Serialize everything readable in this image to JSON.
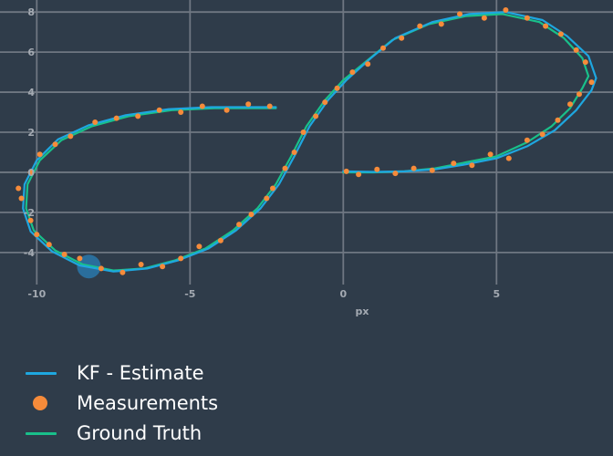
{
  "chart_data": {
    "type": "scatter",
    "title": "",
    "xlabel": "px",
    "ylabel": "",
    "xlim": [
      -11.2,
      8.8
    ],
    "ylim": [
      -5.6,
      8.6
    ],
    "x_ticks": [
      -10,
      -5,
      0,
      5
    ],
    "y_ticks": [
      -4,
      -2,
      0,
      2,
      4,
      6,
      8
    ],
    "grid": true,
    "legend_position": "bottom-left",
    "colors": {
      "background": "#2f3c4a",
      "grid": "#6f7782",
      "estimate": "#1ea7e0",
      "measurements": "#f68b3a",
      "ground_truth": "#19c08a",
      "highlight": "#2a7fb8"
    },
    "highlight_point": {
      "x": -8.3,
      "y": -4.7
    },
    "legend": [
      {
        "label": "KF - Estimate",
        "symbol": "line",
        "color": "#1ea7e0"
      },
      {
        "label": "Measurements",
        "symbol": "dot",
        "color": "#f68b3a"
      },
      {
        "label": "Ground Truth",
        "symbol": "line",
        "color": "#19c08a"
      }
    ],
    "series": [
      {
        "name": "Ground Truth",
        "kind": "line",
        "points": [
          [
            0,
            0
          ],
          [
            1,
            0
          ],
          [
            2,
            0.05
          ],
          [
            3,
            0.2
          ],
          [
            4,
            0.5
          ],
          [
            5,
            0.8
          ],
          [
            6,
            1.5
          ],
          [
            6.8,
            2.3
          ],
          [
            7.4,
            3.2
          ],
          [
            7.8,
            4.2
          ],
          [
            8,
            4.8
          ],
          [
            7.8,
            5.7
          ],
          [
            7.2,
            6.7
          ],
          [
            6.4,
            7.5
          ],
          [
            5.2,
            7.9
          ],
          [
            4,
            7.8
          ],
          [
            2.8,
            7.4
          ],
          [
            1.6,
            6.6
          ],
          [
            0.8,
            5.6
          ],
          [
            0,
            4.6
          ],
          [
            -0.6,
            3.6
          ],
          [
            -1.2,
            2.3
          ],
          [
            -1.7,
            0.8
          ],
          [
            -2.2,
            -0.6
          ],
          [
            -2.8,
            -1.8
          ],
          [
            -3.6,
            -2.9
          ],
          [
            -4.5,
            -3.8
          ],
          [
            -5.5,
            -4.4
          ],
          [
            -6.5,
            -4.8
          ],
          [
            -7.5,
            -4.9
          ],
          [
            -8.5,
            -4.6
          ],
          [
            -9.4,
            -3.9
          ],
          [
            -10.1,
            -2.9
          ],
          [
            -10.35,
            -1.8
          ],
          [
            -10.3,
            -0.6
          ],
          [
            -9.9,
            0.6
          ],
          [
            -9.2,
            1.6
          ],
          [
            -8.2,
            2.3
          ],
          [
            -7,
            2.8
          ],
          [
            -5.6,
            3.1
          ],
          [
            -4.2,
            3.2
          ],
          [
            -2.2,
            3.2
          ]
        ]
      },
      {
        "name": "KF - Estimate",
        "kind": "line",
        "points": [
          [
            0,
            0.05
          ],
          [
            1,
            0.02
          ],
          [
            2,
            0.05
          ],
          [
            3,
            0.15
          ],
          [
            4,
            0.4
          ],
          [
            5,
            0.7
          ],
          [
            6,
            1.3
          ],
          [
            6.9,
            2.1
          ],
          [
            7.6,
            3.1
          ],
          [
            8.1,
            4.1
          ],
          [
            8.25,
            4.7
          ],
          [
            8,
            5.8
          ],
          [
            7.3,
            6.8
          ],
          [
            6.5,
            7.6
          ],
          [
            5.3,
            8
          ],
          [
            4.1,
            7.9
          ],
          [
            2.9,
            7.5
          ],
          [
            1.7,
            6.7
          ],
          [
            0.9,
            5.7
          ],
          [
            0.1,
            4.6
          ],
          [
            -0.5,
            3.6
          ],
          [
            -1.1,
            2.3
          ],
          [
            -1.6,
            0.8
          ],
          [
            -2.1,
            -0.6
          ],
          [
            -2.7,
            -1.8
          ],
          [
            -3.5,
            -2.9
          ],
          [
            -4.4,
            -3.8
          ],
          [
            -5.4,
            -4.4
          ],
          [
            -6.4,
            -4.8
          ],
          [
            -7.5,
            -4.95
          ],
          [
            -8.6,
            -4.65
          ],
          [
            -9.5,
            -3.95
          ],
          [
            -10.2,
            -2.95
          ],
          [
            -10.45,
            -1.8
          ],
          [
            -10.4,
            -0.6
          ],
          [
            -10,
            0.6
          ],
          [
            -9.3,
            1.65
          ],
          [
            -8.3,
            2.35
          ],
          [
            -7.1,
            2.85
          ],
          [
            -5.7,
            3.15
          ],
          [
            -4.3,
            3.25
          ],
          [
            -2.2,
            3.25
          ]
        ]
      },
      {
        "name": "Measurements",
        "kind": "points",
        "points": [
          [
            0.1,
            0.05
          ],
          [
            0.5,
            -0.1
          ],
          [
            1.1,
            0.15
          ],
          [
            1.7,
            -0.05
          ],
          [
            2.3,
            0.2
          ],
          [
            2.9,
            0.1
          ],
          [
            3.6,
            0.45
          ],
          [
            4.2,
            0.35
          ],
          [
            4.8,
            0.9
          ],
          [
            5.4,
            0.7
          ],
          [
            6,
            1.6
          ],
          [
            6.5,
            1.9
          ],
          [
            7,
            2.6
          ],
          [
            7.4,
            3.4
          ],
          [
            7.7,
            3.9
          ],
          [
            8.1,
            4.5
          ],
          [
            7.9,
            5.5
          ],
          [
            7.6,
            6.1
          ],
          [
            7.1,
            6.9
          ],
          [
            6.6,
            7.3
          ],
          [
            6,
            7.7
          ],
          [
            5.3,
            8.1
          ],
          [
            4.6,
            7.7
          ],
          [
            3.8,
            7.9
          ],
          [
            3.2,
            7.4
          ],
          [
            2.5,
            7.3
          ],
          [
            1.9,
            6.7
          ],
          [
            1.3,
            6.2
          ],
          [
            0.8,
            5.4
          ],
          [
            0.3,
            5
          ],
          [
            -0.2,
            4.2
          ],
          [
            -0.6,
            3.5
          ],
          [
            -0.9,
            2.8
          ],
          [
            -1.3,
            2
          ],
          [
            -1.6,
            1
          ],
          [
            -1.9,
            0.2
          ],
          [
            -2.3,
            -0.8
          ],
          [
            -2.5,
            -1.3
          ],
          [
            -3,
            -2.1
          ],
          [
            -3.4,
            -2.6
          ],
          [
            -4,
            -3.4
          ],
          [
            -4.7,
            -3.7
          ],
          [
            -5.3,
            -4.3
          ],
          [
            -5.9,
            -4.7
          ],
          [
            -6.6,
            -4.6
          ],
          [
            -7.2,
            -5
          ],
          [
            -7.9,
            -4.8
          ],
          [
            -8.6,
            -4.3
          ],
          [
            -9.1,
            -4.1
          ],
          [
            -9.6,
            -3.6
          ],
          [
            -10,
            -3.1
          ],
          [
            -10.2,
            -2.4
          ],
          [
            -10.5,
            -1.3
          ],
          [
            -10.6,
            -0.8
          ],
          [
            -10.2,
            0
          ],
          [
            -9.9,
            0.9
          ],
          [
            -9.4,
            1.4
          ],
          [
            -8.9,
            1.8
          ],
          [
            -8.1,
            2.5
          ],
          [
            -7.4,
            2.7
          ],
          [
            -6.7,
            2.8
          ],
          [
            -6,
            3.1
          ],
          [
            -5.3,
            3
          ],
          [
            -4.6,
            3.3
          ],
          [
            -3.8,
            3.1
          ],
          [
            -3.1,
            3.4
          ],
          [
            -2.4,
            3.3
          ]
        ]
      }
    ]
  }
}
